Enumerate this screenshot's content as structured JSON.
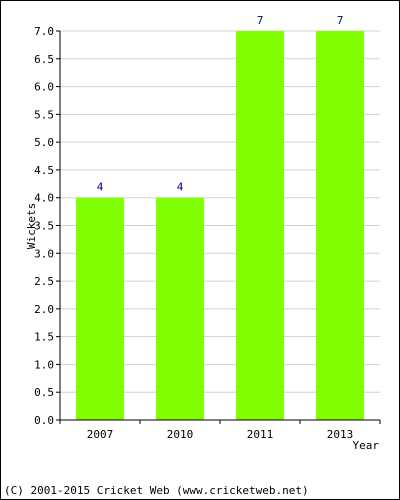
{
  "chart_data": {
    "type": "bar",
    "categories": [
      "2007",
      "2010",
      "2011",
      "2013"
    ],
    "values": [
      4,
      4,
      7,
      7
    ],
    "data_labels": [
      "4",
      "4",
      "7",
      "7"
    ],
    "title": "",
    "xlabel": "Year",
    "ylabel": "Wickets",
    "ylim": [
      0,
      7
    ],
    "yticks": [
      "0.0",
      "0.5",
      "1.0",
      "1.5",
      "2.0",
      "2.5",
      "3.0",
      "3.5",
      "4.0",
      "4.5",
      "5.0",
      "5.5",
      "6.0",
      "6.5",
      "7.0"
    ],
    "grid": true,
    "bar_color": "#80ff00",
    "label_color": "#000080",
    "grid_color": "#d0d0d0"
  },
  "footer": "(C) 2001-2015 Cricket Web (www.cricketweb.net)"
}
